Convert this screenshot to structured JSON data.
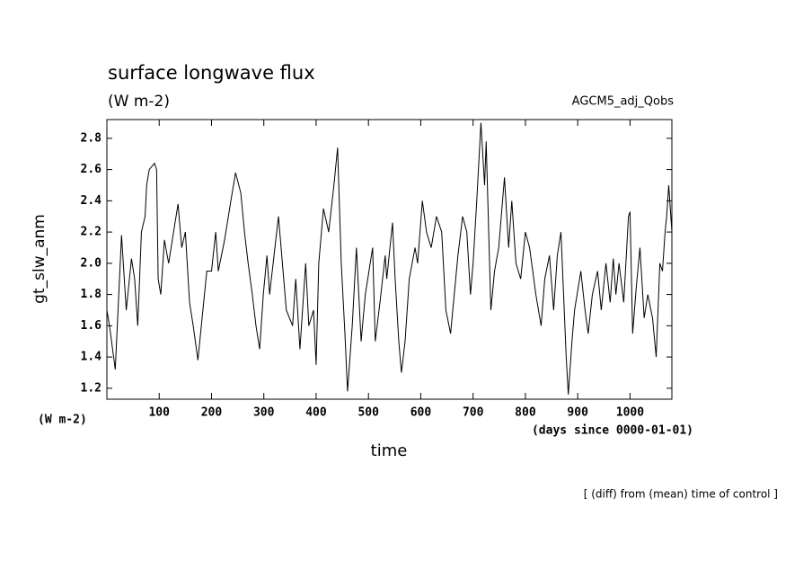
{
  "chart_data": {
    "type": "line",
    "title": "surface longwave flux",
    "subtitle": "(W m-2)",
    "annotation": "AGCM5_adj_Qobs",
    "y_label": "gt_slw_anm",
    "y_unit": "(W m-2)",
    "x_label": "time",
    "x_unit": "(days since 0000-01-01)",
    "footnote": "[ (diff) from (mean) time of control ]",
    "xlim": [
      0,
      1080
    ],
    "ylim": [
      1.13,
      2.92
    ],
    "xticks": [
      100,
      200,
      300,
      400,
      500,
      600,
      700,
      800,
      900,
      1000
    ],
    "yticks": [
      1.2,
      1.4,
      1.6,
      1.8,
      {
        "value": 2,
        "label": "2.0"
      },
      2.2,
      2.4,
      2.6,
      2.8
    ],
    "color": "#000000",
    "x": [
      0,
      5,
      16,
      28,
      37,
      47,
      53,
      59,
      66,
      73,
      76,
      81,
      91,
      95,
      98,
      103,
      110,
      118,
      136,
      143,
      150,
      158,
      165,
      174,
      182,
      191,
      200,
      208,
      213,
      225,
      237,
      246,
      256,
      263,
      270,
      278,
      285,
      292,
      299,
      306,
      311,
      328,
      343,
      355,
      361,
      369,
      380,
      386,
      395,
      400,
      405,
      414,
      424,
      434,
      441,
      448,
      455,
      460,
      469,
      477,
      486,
      494,
      508,
      513,
      522,
      532,
      535,
      546,
      551,
      558,
      563,
      570,
      578,
      589,
      594,
      603,
      611,
      620,
      630,
      640,
      648,
      657,
      664,
      671,
      680,
      688,
      695,
      700,
      707,
      715,
      722,
      725,
      729,
      734,
      741,
      749,
      760,
      768,
      774,
      782,
      791,
      800,
      808,
      820,
      830,
      837,
      846,
      854,
      861,
      868,
      873,
      878,
      882,
      889,
      894,
      906,
      914,
      920,
      928,
      938,
      945,
      954,
      962,
      968,
      973,
      979,
      988,
      997,
      1000,
      1005,
      1012,
      1019,
      1027,
      1034,
      1043,
      1050,
      1057,
      1062,
      1067,
      1070,
      1074,
      1080
    ],
    "values": [
      1.7,
      1.6,
      1.32,
      2.18,
      1.7,
      2.03,
      1.9,
      1.6,
      2.2,
      2.3,
      2.5,
      2.6,
      2.64,
      2.6,
      1.9,
      1.8,
      2.15,
      2.0,
      2.38,
      2.1,
      2.2,
      1.75,
      1.6,
      1.38,
      1.65,
      1.95,
      1.95,
      2.2,
      1.95,
      2.15,
      2.4,
      2.58,
      2.45,
      2.2,
      2.0,
      1.8,
      1.6,
      1.45,
      1.8,
      2.05,
      1.8,
      2.3,
      1.7,
      1.6,
      1.9,
      1.45,
      2.0,
      1.6,
      1.7,
      1.35,
      2.0,
      2.35,
      2.2,
      2.5,
      2.74,
      2.0,
      1.55,
      1.18,
      1.6,
      2.1,
      1.5,
      1.8,
      2.1,
      1.5,
      1.75,
      2.05,
      1.9,
      2.26,
      1.9,
      1.5,
      1.3,
      1.5,
      1.9,
      2.1,
      2.0,
      2.4,
      2.2,
      2.1,
      2.3,
      2.2,
      1.7,
      1.55,
      1.8,
      2.05,
      2.3,
      2.2,
      1.8,
      2.0,
      2.4,
      2.9,
      2.5,
      2.78,
      2.3,
      1.7,
      1.95,
      2.1,
      2.55,
      2.1,
      2.4,
      2.0,
      1.9,
      2.2,
      2.1,
      1.8,
      1.6,
      1.9,
      2.05,
      1.7,
      2.05,
      2.2,
      1.8,
      1.4,
      1.16,
      1.5,
      1.7,
      1.95,
      1.7,
      1.55,
      1.8,
      1.95,
      1.7,
      2.0,
      1.75,
      2.03,
      1.8,
      2.0,
      1.75,
      2.3,
      2.33,
      1.55,
      1.85,
      2.1,
      1.65,
      1.8,
      1.65,
      1.4,
      2.0,
      1.95,
      2.2,
      2.3,
      2.5,
      2.2
    ]
  }
}
